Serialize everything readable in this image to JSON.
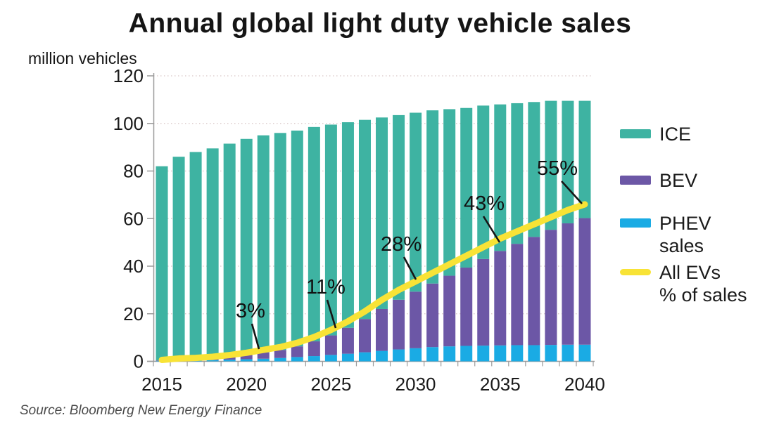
{
  "title": "Annual global light duty vehicle sales",
  "y_axis_title": "million vehicles",
  "source": "Source: Bloomberg New Energy Finance",
  "legend": {
    "items": [
      {
        "name": "ICE",
        "color": "#3eb3a2",
        "shape": "bar",
        "lines": [
          "ICE"
        ]
      },
      {
        "name": "BEV",
        "color": "#6c57a6",
        "shape": "bar",
        "lines": [
          "BEV"
        ]
      },
      {
        "name": "PHEV sales",
        "color": "#1aabe4",
        "shape": "bar",
        "lines": [
          "PHEV",
          "sales"
        ]
      },
      {
        "name": "All EVs % of sales",
        "color": "#f8e336",
        "shape": "line",
        "lines": [
          "All EVs",
          "% of sales"
        ]
      }
    ]
  },
  "chart_data": {
    "type": "bar",
    "subtype": "stacked-bar-with-line",
    "title": "Annual global light duty vehicle sales",
    "xlabel": "",
    "ylabel": "million vehicles",
    "ylim": [
      0,
      120
    ],
    "yticks": [
      0,
      20,
      40,
      60,
      80,
      100,
      120
    ],
    "grid": "horizontal-dotted",
    "legend_position": "right",
    "x": [
      2015,
      2016,
      2017,
      2018,
      2019,
      2020,
      2021,
      2022,
      2023,
      2024,
      2025,
      2026,
      2027,
      2028,
      2029,
      2030,
      2031,
      2032,
      2033,
      2034,
      2035,
      2036,
      2037,
      2038,
      2039,
      2040
    ],
    "xtick_labels": [
      2015,
      2020,
      2025,
      2030,
      2035,
      2040
    ],
    "series": [
      {
        "name": "PHEV sales",
        "color": "#1aabe4",
        "stack_order": 1,
        "values": [
          0.2,
          0.3,
          0.4,
          0.5,
          0.7,
          0.9,
          1.1,
          1.4,
          1.8,
          2.2,
          2.7,
          3.2,
          3.8,
          4.4,
          5.0,
          5.5,
          6.0,
          6.3,
          6.5,
          6.6,
          6.7,
          6.8,
          6.8,
          6.9,
          7.0,
          7.0
        ]
      },
      {
        "name": "BEV",
        "color": "#6c57a6",
        "stack_order": 2,
        "values": [
          0.2,
          0.5,
          0.7,
          0.9,
          1.3,
          1.9,
          2.7,
          3.4,
          4.5,
          6.2,
          8.2,
          10.9,
          14.0,
          17.6,
          20.9,
          23.8,
          26.7,
          29.7,
          32.9,
          36.4,
          39.7,
          42.6,
          45.5,
          48.4,
          51.0,
          53.2
        ]
      },
      {
        "name": "ICE",
        "color": "#3eb3a2",
        "stack_order": 3,
        "values": [
          81.6,
          85.2,
          86.9,
          88.1,
          89.5,
          90.7,
          91.2,
          91.2,
          90.7,
          90.1,
          88.6,
          86.4,
          83.7,
          80.5,
          77.6,
          75.2,
          72.8,
          70.0,
          67.1,
          64.5,
          61.6,
          59.1,
          56.7,
          54.2,
          51.5,
          49.3
        ]
      }
    ],
    "line_series": {
      "name": "All EVs % of sales",
      "color": "#f8e336",
      "unit": "%",
      "scale_note": "percent plotted on left axis as pct * 1.2 (100% = 120)",
      "values": [
        0.5,
        1.0,
        1.2,
        1.6,
        2.2,
        3.0,
        4.0,
        5.0,
        6.5,
        8.5,
        11.0,
        14.0,
        17.5,
        21.5,
        25.0,
        28.0,
        31.0,
        34.0,
        37.0,
        40.0,
        43.0,
        45.5,
        48.0,
        50.5,
        53.0,
        55.0
      ]
    },
    "annotations": [
      {
        "label": "3%",
        "year": 2020,
        "pct": 3
      },
      {
        "label": "11%",
        "year": 2025,
        "pct": 11
      },
      {
        "label": "28%",
        "year": 2030,
        "pct": 28
      },
      {
        "label": "43%",
        "year": 2035,
        "pct": 43
      },
      {
        "label": "55%",
        "year": 2040,
        "pct": 55
      }
    ]
  },
  "colors": {
    "ice": "#3eb3a2",
    "bev": "#6c57a6",
    "phev": "#1aabe4",
    "ev_share_line": "#f8e336",
    "grid": "#d9c7c7",
    "axis": "#9b9b9b",
    "text": "#1a1a1a"
  }
}
